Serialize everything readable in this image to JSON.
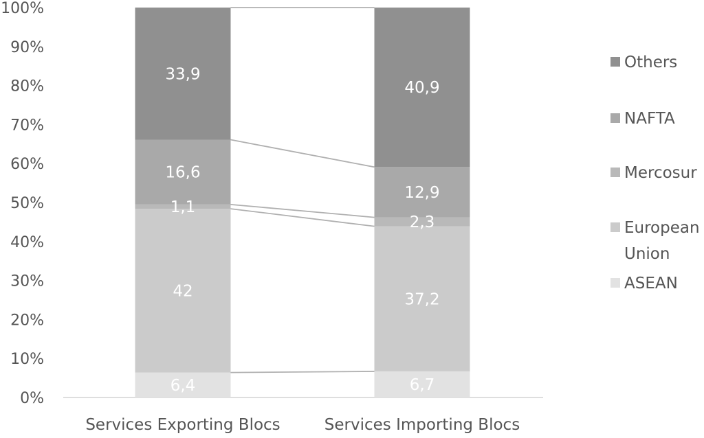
{
  "chart_data": {
    "type": "bar",
    "stacked": true,
    "percent": true,
    "categories": [
      "Services Exporting Blocs",
      "Services Importing Blocs"
    ],
    "series": [
      {
        "name": "ASEAN",
        "values": [
          6.4,
          6.7
        ],
        "labels": [
          "6,4",
          "6,7"
        ],
        "color": "#e2e2e2"
      },
      {
        "name": "European Union",
        "values": [
          42,
          37.2
        ],
        "labels": [
          "42",
          "37,2"
        ],
        "color": "#cbcbcb"
      },
      {
        "name": "Mercosur",
        "values": [
          1.1,
          2.3
        ],
        "labels": [
          "1,1",
          "2,3"
        ],
        "color": "#b9b9b9"
      },
      {
        "name": "NAFTA",
        "values": [
          16.6,
          12.9
        ],
        "labels": [
          "16,6",
          "12,9"
        ],
        "color": "#a9a9a9"
      },
      {
        "name": "Others",
        "values": [
          33.9,
          40.9
        ],
        "labels": [
          "33,9",
          "40,9"
        ],
        "color": "#909090"
      }
    ],
    "yticks": [
      "0%",
      "10%",
      "20%",
      "30%",
      "40%",
      "50%",
      "60%",
      "70%",
      "80%",
      "90%",
      "100%"
    ],
    "ylim": [
      0,
      100
    ],
    "legend_order": [
      "Others",
      "NAFTA",
      "Mercosur",
      "European Union",
      "ASEAN"
    ],
    "legend_position": "right",
    "series_lines": true,
    "grid": false
  }
}
